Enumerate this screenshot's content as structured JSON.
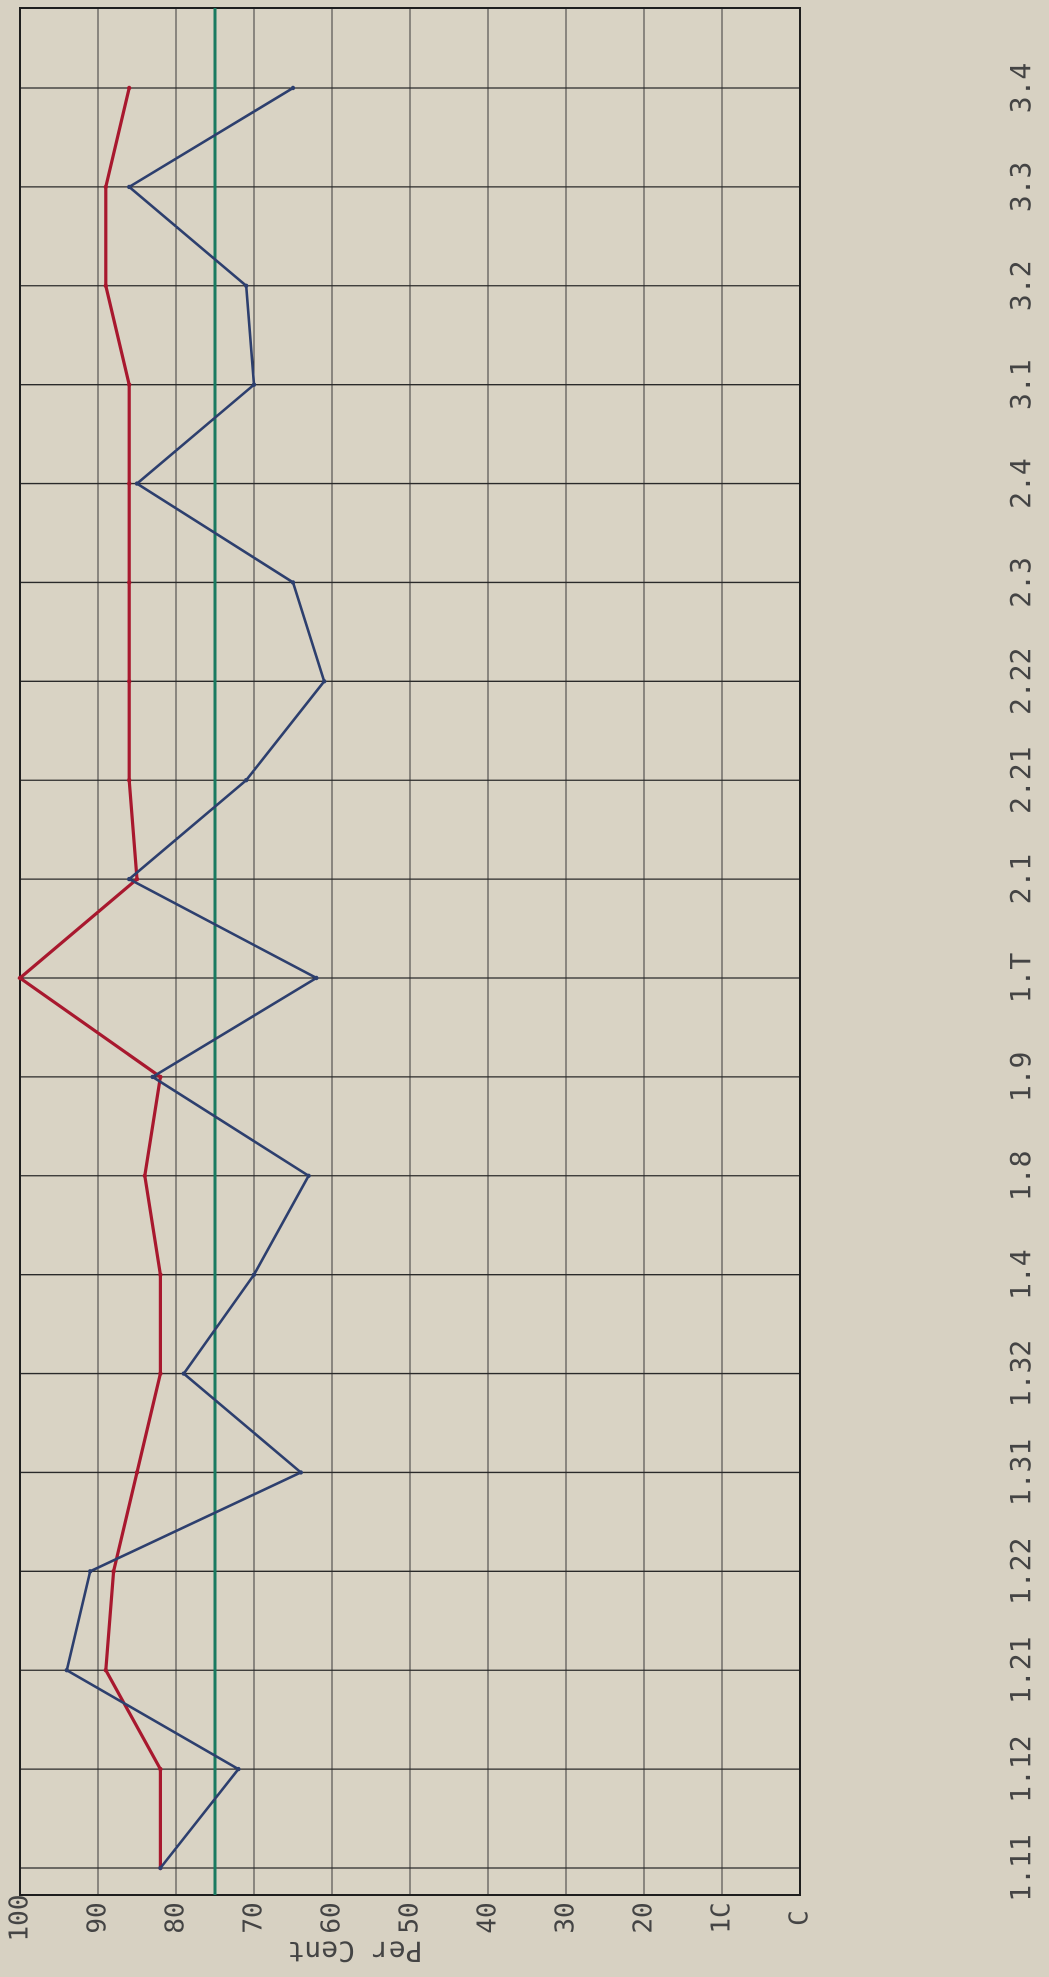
{
  "chart_data": {
    "type": "line",
    "orientation": "rotated-90-clockwise",
    "ylabel": "Per Cent",
    "xlabel": "",
    "ylim": [
      0,
      100
    ],
    "yticks": [
      "C",
      "1C",
      "20",
      "30",
      "40",
      "50",
      "60",
      "70",
      "80",
      "90",
      "100"
    ],
    "categories": [
      "1.11",
      "1.12",
      "1.21",
      "1.22",
      "1.31",
      "1.32",
      "1.4",
      "1.8",
      "1.9",
      "1.T",
      "2.1",
      "2.21",
      "2.22",
      "2.3",
      "2.4",
      "3.1",
      "3.2",
      "3.3",
      "3.4"
    ],
    "grid": true,
    "series": [
      {
        "color": "#a8182e",
        "values": [
          82,
          82,
          89,
          88,
          85,
          82,
          82,
          84,
          82,
          100,
          85,
          86,
          86,
          86,
          86,
          86,
          89,
          89,
          86
        ]
      },
      {
        "color": "#2d3f6e",
        "values": [
          82,
          72,
          94,
          91,
          64,
          79,
          70,
          63,
          83,
          62,
          86,
          71,
          61,
          65,
          85,
          70,
          71,
          86,
          65
        ]
      }
    ],
    "reference_line": {
      "value": 75,
      "color": "#1a7a60"
    }
  }
}
